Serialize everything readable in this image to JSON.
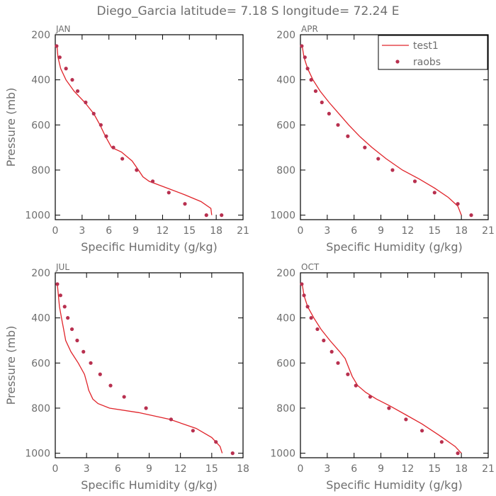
{
  "figure": {
    "title": "Diego_Garcia  latitude= 7.18 S longitude= 72.24 E"
  },
  "colors": {
    "model_line": "#e0242a",
    "obs_marker": "#b8304f",
    "text": "#6e6e6e",
    "frame": "#000000"
  },
  "legend": {
    "placement": "top-right of APR panel",
    "entries": [
      {
        "label": "test1",
        "style": "line"
      },
      {
        "label": "raobs",
        "style": "marker"
      }
    ]
  },
  "chart_data": [
    {
      "type": "line",
      "panel_label": "JAN",
      "xlabel": "Specific Humidity (g/kg)",
      "ylabel": "Pressure (mb)",
      "xlim": [
        0,
        21
      ],
      "ylim": [
        1020,
        200
      ],
      "y_inverted": true,
      "xticks": [
        0,
        3,
        6,
        9,
        12,
        15,
        18,
        21
      ],
      "yticks": [
        200,
        400,
        600,
        800,
        1000
      ],
      "show_legend": false,
      "series": [
        {
          "name": "test1",
          "kind": "line",
          "x": [
            0.2,
            0.3,
            0.6,
            1.2,
            2.1,
            3.3,
            4.3,
            5.0,
            5.6,
            6.3,
            7.4,
            8.6,
            9.3,
            9.8,
            10.5,
            12.5,
            14.5,
            16.3,
            17.4,
            17.5
          ],
          "y": [
            250,
            300,
            350,
            400,
            450,
            500,
            550,
            600,
            650,
            700,
            720,
            760,
            800,
            830,
            850,
            880,
            910,
            940,
            970,
            1000
          ]
        },
        {
          "name": "raobs",
          "kind": "scatter",
          "x": [
            0.15,
            0.5,
            1.2,
            1.9,
            2.5,
            3.4,
            4.3,
            5.1,
            5.7,
            6.5,
            7.5,
            9.1,
            10.9,
            12.7,
            14.5,
            16.9,
            18.6
          ],
          "y": [
            250,
            300,
            350,
            400,
            450,
            500,
            550,
            600,
            650,
            700,
            750,
            800,
            850,
            900,
            950,
            1000,
            1000
          ]
        }
      ]
    },
    {
      "type": "line",
      "panel_label": "APR",
      "xlabel": "Specific Humidity (g/kg)",
      "ylabel": "",
      "xlim": [
        0,
        21
      ],
      "ylim": [
        1020,
        200
      ],
      "y_inverted": true,
      "xticks": [
        0,
        3,
        6,
        9,
        12,
        15,
        18,
        21
      ],
      "yticks": [
        200,
        400,
        600,
        800,
        1000
      ],
      "show_legend": true,
      "series": [
        {
          "name": "test1",
          "kind": "line",
          "x": [
            0.2,
            0.4,
            0.8,
            1.4,
            2.2,
            3.2,
            4.3,
            5.4,
            6.6,
            8.0,
            9.6,
            11.4,
            13.3,
            15.0,
            16.5,
            17.6,
            18.0
          ],
          "y": [
            250,
            300,
            350,
            400,
            450,
            500,
            550,
            600,
            650,
            700,
            750,
            800,
            840,
            880,
            920,
            960,
            1000
          ]
        },
        {
          "name": "raobs",
          "kind": "scatter",
          "x": [
            0.15,
            0.5,
            0.8,
            1.2,
            1.7,
            2.4,
            3.2,
            4.2,
            5.3,
            7.2,
            8.7,
            10.3,
            12.8,
            15.0,
            17.6,
            19.1
          ],
          "y": [
            250,
            300,
            350,
            400,
            450,
            500,
            550,
            600,
            650,
            700,
            750,
            800,
            850,
            900,
            950,
            1000
          ]
        }
      ]
    },
    {
      "type": "line",
      "panel_label": "JUL",
      "xlabel": "Specific Humidity (g/kg)",
      "ylabel": "Pressure (mb)",
      "xlim": [
        0,
        18
      ],
      "ylim": [
        1020,
        200
      ],
      "y_inverted": true,
      "xticks": [
        0,
        3,
        6,
        9,
        12,
        15,
        18
      ],
      "yticks": [
        200,
        400,
        600,
        800,
        1000
      ],
      "show_legend": false,
      "series": [
        {
          "name": "test1",
          "kind": "line",
          "x": [
            0.2,
            0.3,
            0.4,
            0.6,
            0.8,
            1.0,
            1.5,
            2.2,
            2.8,
            3.1,
            3.2,
            3.6,
            4.1,
            5.2,
            8.0,
            11.0,
            13.5,
            15.0,
            15.8,
            16.0
          ],
          "y": [
            250,
            300,
            350,
            400,
            450,
            500,
            550,
            600,
            650,
            700,
            720,
            760,
            780,
            800,
            820,
            850,
            890,
            930,
            970,
            1000
          ]
        },
        {
          "name": "raobs",
          "kind": "scatter",
          "x": [
            0.2,
            0.5,
            0.9,
            1.2,
            1.6,
            2.1,
            2.7,
            3.4,
            4.3,
            5.3,
            6.6,
            8.7,
            11.1,
            13.2,
            15.4,
            17.0
          ],
          "y": [
            250,
            300,
            350,
            400,
            450,
            500,
            550,
            600,
            650,
            700,
            750,
            800,
            850,
            900,
            950,
            1000
          ]
        }
      ]
    },
    {
      "type": "line",
      "panel_label": "OCT",
      "xlabel": "Specific Humidity (g/kg)",
      "ylabel": "",
      "xlim": [
        0,
        21
      ],
      "ylim": [
        1020,
        200
      ],
      "y_inverted": true,
      "xticks": [
        0,
        3,
        6,
        9,
        12,
        15,
        18,
        21
      ],
      "yticks": [
        200,
        400,
        600,
        800,
        1000
      ],
      "show_legend": false,
      "series": [
        {
          "name": "test1",
          "kind": "line",
          "x": [
            0.2,
            0.4,
            0.8,
            1.5,
            2.3,
            3.3,
            4.4,
            5.0,
            5.4,
            5.8,
            6.4,
            7.3,
            8.5,
            10.0,
            11.8,
            13.6,
            15.5,
            17.3,
            18.0
          ],
          "y": [
            250,
            300,
            350,
            400,
            450,
            500,
            550,
            580,
            620,
            660,
            700,
            730,
            760,
            790,
            830,
            870,
            920,
            970,
            1000
          ]
        },
        {
          "name": "raobs",
          "kind": "scatter",
          "x": [
            0.15,
            0.4,
            0.8,
            1.2,
            1.9,
            2.6,
            3.5,
            4.2,
            5.3,
            6.2,
            7.8,
            9.9,
            11.8,
            13.6,
            15.8,
            17.6
          ],
          "y": [
            250,
            300,
            350,
            400,
            450,
            500,
            550,
            600,
            650,
            700,
            750,
            800,
            850,
            900,
            950,
            1000
          ]
        }
      ]
    }
  ]
}
